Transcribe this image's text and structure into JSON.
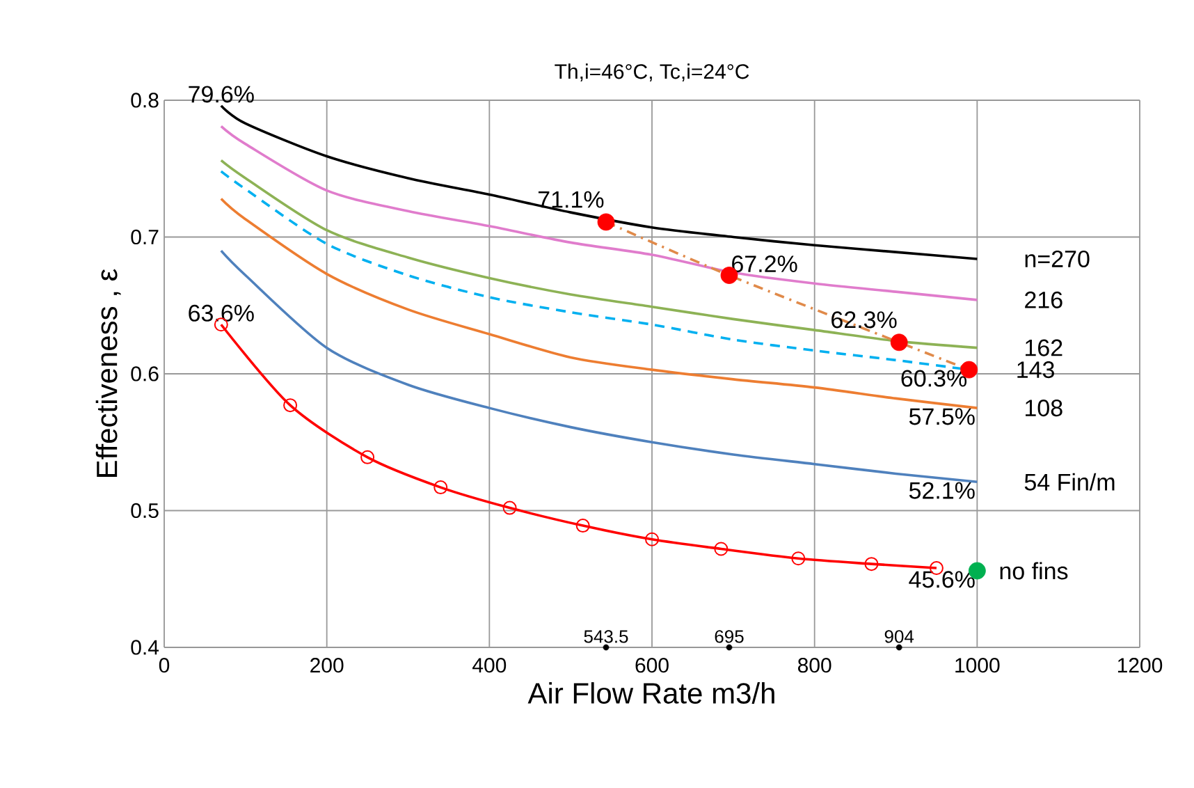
{
  "chart_data": {
    "type": "line",
    "title": "Th,i=46°C,   Tc,i=24°C",
    "xlabel": "Air Flow Rate m3/h",
    "ylabel": "Effectiveness , ε",
    "xlim": [
      0,
      1200
    ],
    "xticks": [
      0,
      200,
      400,
      600,
      800,
      1000,
      1200
    ],
    "ylim": [
      0.4,
      0.8
    ],
    "yticks": [
      0.4,
      0.5,
      0.6,
      0.7,
      0.8
    ],
    "grid": true,
    "legend": false,
    "series": [
      {
        "name": "n=270",
        "color": "#000000",
        "x": [
          70,
          100,
          200,
          300,
          400,
          500,
          600,
          700,
          800,
          900,
          1000
        ],
        "values": [
          0.796,
          0.783,
          0.759,
          0.743,
          0.731,
          0.718,
          0.707,
          0.7,
          0.694,
          0.689,
          0.684
        ]
      },
      {
        "name": "216",
        "color": "#e07ccc",
        "x": [
          70,
          100,
          200,
          300,
          400,
          500,
          600,
          700,
          800,
          900,
          1000
        ],
        "values": [
          0.781,
          0.768,
          0.734,
          0.719,
          0.708,
          0.696,
          0.687,
          0.674,
          0.666,
          0.66,
          0.654
        ]
      },
      {
        "name": "162",
        "color": "#8db255",
        "x": [
          70,
          100,
          200,
          300,
          400,
          500,
          600,
          700,
          800,
          900,
          1000
        ],
        "values": [
          0.756,
          0.743,
          0.705,
          0.685,
          0.67,
          0.658,
          0.649,
          0.64,
          0.632,
          0.624,
          0.619
        ]
      },
      {
        "name": "143",
        "color": "#00b0f0",
        "line_style": "dashed",
        "x": [
          70,
          100,
          200,
          300,
          400,
          500,
          600,
          700,
          800,
          900,
          990
        ],
        "values": [
          0.748,
          0.735,
          0.695,
          0.672,
          0.656,
          0.645,
          0.636,
          0.625,
          0.617,
          0.61,
          0.603
        ]
      },
      {
        "name": "108",
        "color": "#ed7d31",
        "x": [
          70,
          100,
          200,
          300,
          400,
          500,
          600,
          700,
          800,
          900,
          1000
        ],
        "values": [
          0.728,
          0.713,
          0.673,
          0.647,
          0.629,
          0.612,
          0.603,
          0.596,
          0.59,
          0.582,
          0.575
        ]
      },
      {
        "name": "54 Fin/m",
        "color": "#4f81bd",
        "x": [
          70,
          100,
          200,
          300,
          400,
          500,
          600,
          700,
          800,
          900,
          1000
        ],
        "values": [
          0.69,
          0.672,
          0.619,
          0.592,
          0.575,
          0.561,
          0.55,
          0.541,
          0.534,
          0.527,
          0.521
        ]
      },
      {
        "color": "#ff0000",
        "marker": "circle",
        "x": [
          70,
          155,
          250,
          340,
          425,
          515,
          600,
          685,
          780,
          870,
          950
        ],
        "values": [
          0.636,
          0.577,
          0.539,
          0.517,
          0.502,
          0.489,
          0.479,
          0.472,
          0.465,
          0.461,
          0.458
        ]
      },
      {
        "color": "#e08a4a",
        "line_style": "dashdot",
        "x": [
          543.5,
          695,
          904,
          990
        ],
        "values": [
          0.711,
          0.672,
          0.623,
          0.603
        ]
      },
      {
        "type": "scatter",
        "color": "#ff0000",
        "marker": "circle",
        "x": [
          543.5,
          695,
          904,
          990
        ],
        "values": [
          0.711,
          0.672,
          0.623,
          0.603
        ]
      },
      {
        "type": "scatter",
        "name": "no fins",
        "color": "#00b050",
        "marker": "circle",
        "x": [
          1000
        ],
        "values": [
          0.456
        ]
      },
      {
        "type": "scatter",
        "color": "#000000",
        "marker": "circle",
        "x": [
          543.5,
          695,
          904
        ],
        "values": [
          0.4,
          0.4,
          0.4
        ]
      }
    ],
    "annotations": [
      {
        "text": "79.6%",
        "x": 70,
        "y": 0.796
      },
      {
        "text": "63.6%",
        "x": 70,
        "y": 0.636
      },
      {
        "text": "71.1%",
        "x": 543.5,
        "y": 0.711
      },
      {
        "text": "67.2%",
        "x": 695,
        "y": 0.672
      },
      {
        "text": "62.3%",
        "x": 904,
        "y": 0.623
      },
      {
        "text": "60.3%",
        "x": 990,
        "y": 0.603
      },
      {
        "text": "57.5%",
        "x": 1000,
        "y": 0.575
      },
      {
        "text": "52.1%",
        "x": 1000,
        "y": 0.521
      },
      {
        "text": "45.6%",
        "x": 1000,
        "y": 0.456
      },
      {
        "text": "543.5",
        "x": 543.5,
        "y": 0.4
      },
      {
        "text": "695",
        "x": 695,
        "y": 0.4
      },
      {
        "text": "904",
        "x": 904,
        "y": 0.4
      }
    ]
  }
}
